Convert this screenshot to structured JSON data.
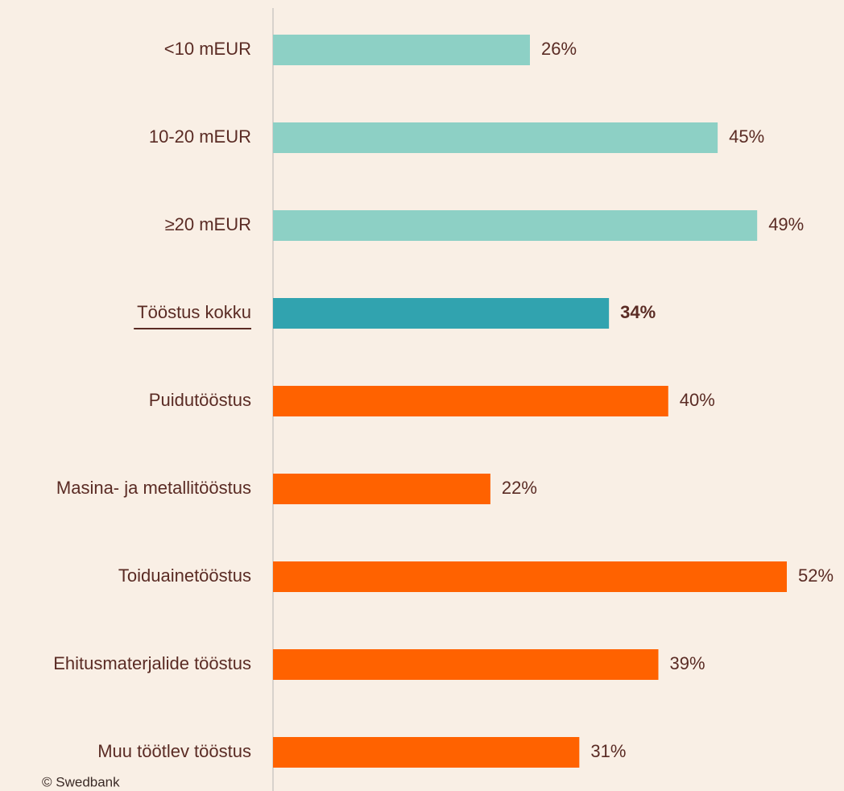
{
  "chart_data": {
    "type": "bar",
    "orientation": "horizontal",
    "categories": [
      "<10 mEUR",
      "10-20 mEUR",
      "≥20 mEUR",
      "Tööstus kokku",
      "Puidutööstus",
      "Masina- ja metallitööstus",
      "Toiduainetööstus",
      "Ehitusmaterjalide tööstus",
      "Muu töötlev tööstus"
    ],
    "values": [
      26,
      45,
      49,
      34,
      40,
      22,
      52,
      39,
      31
    ],
    "value_labels": [
      "26%",
      "45%",
      "49%",
      "34%",
      "40%",
      "22%",
      "52%",
      "39%",
      "31%"
    ],
    "colors": [
      "#8dd0c5",
      "#8dd0c5",
      "#8dd0c5",
      "#31a3af",
      "#ff6200",
      "#ff6200",
      "#ff6200",
      "#ff6200",
      "#ff6200"
    ],
    "highlight": 3,
    "source": "© Swedbank"
  }
}
